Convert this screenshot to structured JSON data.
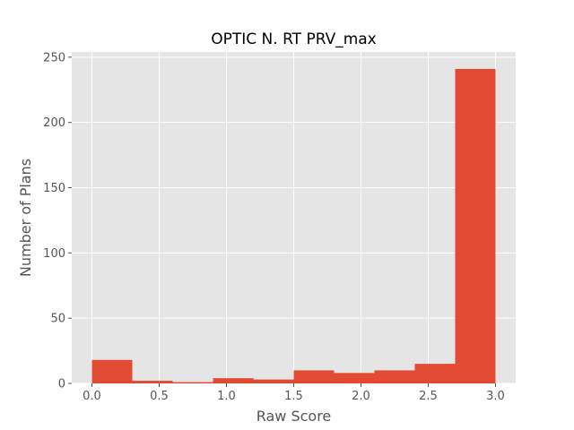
{
  "chart_data": {
    "type": "bar",
    "title": "OPTIC N. RT PRV_max",
    "xlabel": "Raw Score",
    "ylabel": "Number of Plans",
    "xlim": [
      -0.15,
      3.15
    ],
    "ylim": [
      0,
      254
    ],
    "x_ticks": [
      0.0,
      0.5,
      1.0,
      1.5,
      2.0,
      2.5,
      3.0
    ],
    "x_tick_labels": [
      "0.0",
      "0.5",
      "1.0",
      "1.5",
      "2.0",
      "2.5",
      "3.0"
    ],
    "y_ticks": [
      0,
      50,
      100,
      150,
      200,
      250
    ],
    "y_tick_labels": [
      "0",
      "50",
      "100",
      "150",
      "200",
      "250"
    ],
    "bin_edges": [
      0.0,
      0.3,
      0.6,
      0.9,
      1.2,
      1.5,
      1.8,
      2.1,
      2.4,
      2.7,
      3.0
    ],
    "values": [
      18,
      2,
      1,
      4,
      3,
      10,
      8,
      10,
      15,
      241
    ],
    "bar_color": "#E24A33",
    "background_color": "#E5E5E5",
    "grid": true
  }
}
